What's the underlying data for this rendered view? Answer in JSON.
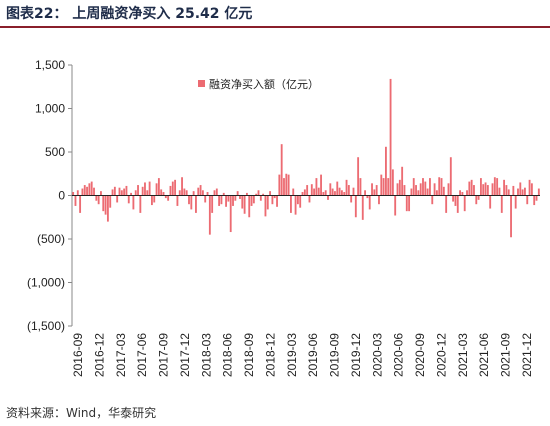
{
  "header": {
    "title": "图表22：  上周融资净买入 25.42 亿元"
  },
  "source": "资料来源：Wind，华泰研究",
  "chart_data": {
    "type": "bar",
    "title": "",
    "xlabel": "",
    "ylabel": "",
    "ylim": [
      -1500,
      1500
    ],
    "yticks": [
      1500,
      1000,
      500,
      0,
      -500,
      -1000,
      -1500
    ],
    "ytick_labels": [
      "1,500",
      "1,000",
      "500",
      "0",
      "(500)",
      "(1,000)",
      "(1,500)"
    ],
    "xtick_labels": [
      "2016-09",
      "2016-12",
      "2017-03",
      "2017-06",
      "2017-09",
      "2017-12",
      "2018-03",
      "2018-06",
      "2018-09",
      "2018-12",
      "2019-03",
      "2019-06",
      "2019-09",
      "2019-12",
      "2020-03",
      "2020-06",
      "2020-09",
      "2020-12",
      "2021-03",
      "2021-06",
      "2021-09",
      "2021-12"
    ],
    "grid": false,
    "legend_position": "top-center",
    "color": "#ec6b72",
    "series": [
      {
        "name": "融资净买入额（亿元）",
        "values": [
          40,
          -120,
          60,
          -200,
          80,
          120,
          100,
          140,
          160,
          90,
          -60,
          -100,
          50,
          -180,
          -220,
          -300,
          -140,
          70,
          100,
          -80,
          90,
          60,
          80,
          110,
          -90,
          30,
          -160,
          60,
          120,
          -200,
          100,
          150,
          60,
          160,
          -110,
          -80,
          140,
          200,
          70,
          40,
          -30,
          -60,
          110,
          160,
          180,
          -120,
          60,
          210,
          80,
          60,
          -100,
          -160,
          50,
          -200,
          90,
          120,
          60,
          -80,
          40,
          -450,
          -200,
          60,
          80,
          -120,
          -100,
          30,
          -130,
          -70,
          -420,
          -120,
          -60,
          50,
          -40,
          -150,
          -210,
          30,
          -250,
          -120,
          -90,
          20,
          60,
          -60,
          20,
          -240,
          -160,
          50,
          -100,
          -30,
          -130,
          240,
          590,
          200,
          250,
          240,
          -200,
          80,
          -220,
          -100,
          -140,
          40,
          70,
          120,
          -80,
          130,
          80,
          200,
          90,
          240,
          40,
          60,
          -50,
          140,
          80,
          50,
          160,
          90,
          60,
          40,
          180,
          120,
          -80,
          90,
          -250,
          440,
          200,
          -280,
          60,
          -30,
          -160,
          140,
          70,
          120,
          -100,
          240,
          200,
          560,
          200,
          1340,
          300,
          -230,
          140,
          180,
          330,
          120,
          -180,
          -180,
          80,
          200,
          120,
          60,
          140,
          200,
          160,
          80,
          200,
          -100,
          140,
          60,
          210,
          200,
          100,
          -200,
          140,
          440,
          -70,
          -120,
          -200,
          60,
          40,
          -180,
          60,
          160,
          180,
          120,
          -100,
          -50,
          200,
          130,
          150,
          120,
          -150,
          140,
          210,
          200,
          90,
          -200,
          180,
          120,
          70,
          -480,
          110,
          -150,
          80,
          150,
          70,
          90,
          -100,
          180,
          140,
          -110,
          -60,
          80
        ]
      }
    ]
  }
}
